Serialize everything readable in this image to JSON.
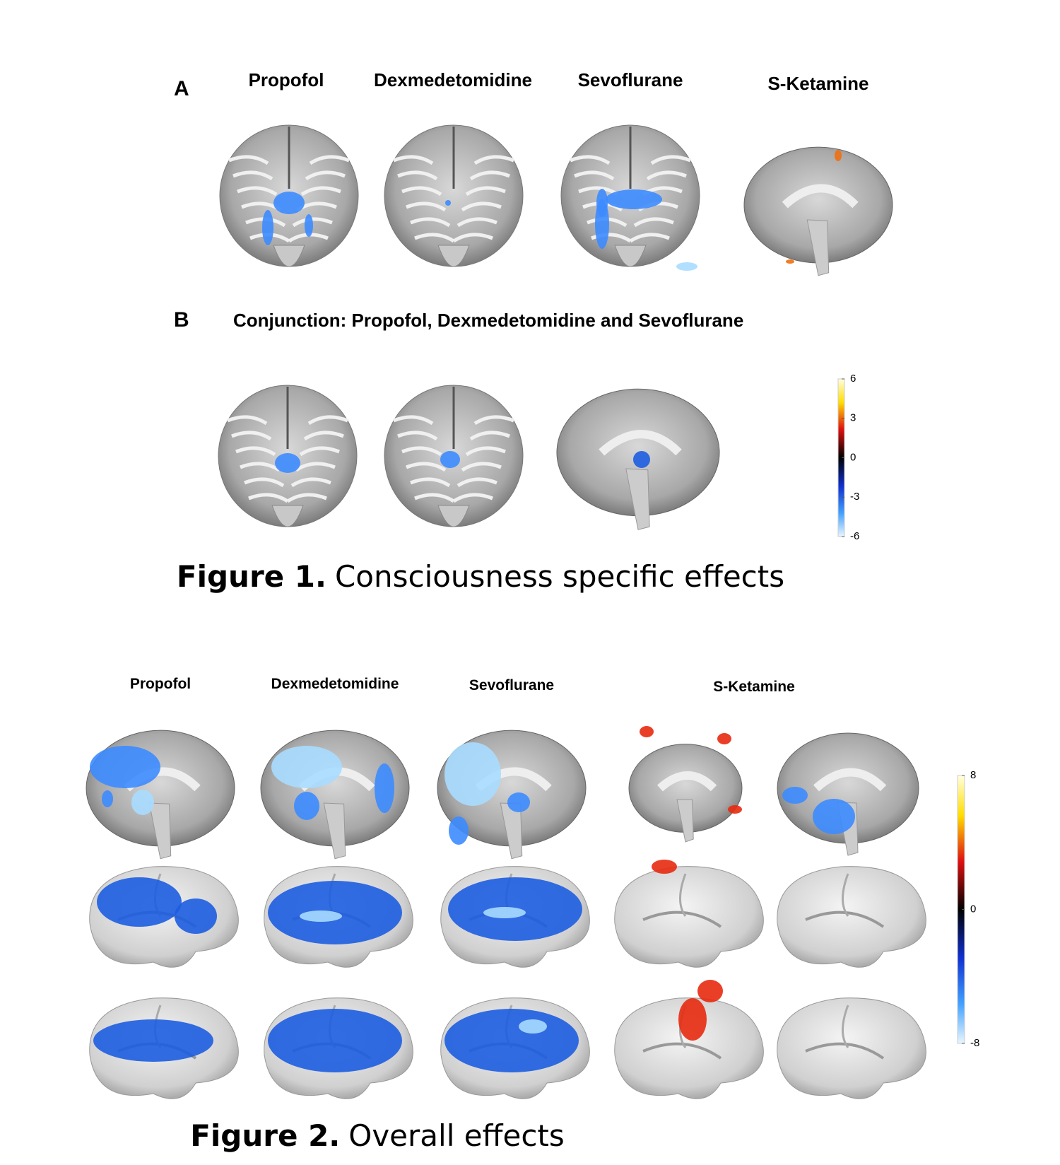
{
  "figure1": {
    "panel_a": {
      "label": "A",
      "columns": [
        "Propofol",
        "Dexmedetomidine",
        "Sevoflurane",
        "S-Ketamine"
      ]
    },
    "panel_b": {
      "label": "B",
      "title": "Conjunction: Propofol, Dexmedetomidine and Sevoflurane"
    },
    "colorbar": {
      "ticks": [
        6,
        3,
        0,
        -3,
        -6
      ]
    },
    "caption": {
      "label": "Figure 1.",
      "text": "Consciousness specific effects"
    }
  },
  "figure2": {
    "columns": [
      "Propofol",
      "Dexmedetomidine",
      "Sevoflurane",
      "S-Ketamine"
    ],
    "colorbar": {
      "ticks": [
        8,
        0,
        -8
      ]
    },
    "caption": {
      "label": "Figure 2.",
      "text": "Overall effects"
    }
  }
}
